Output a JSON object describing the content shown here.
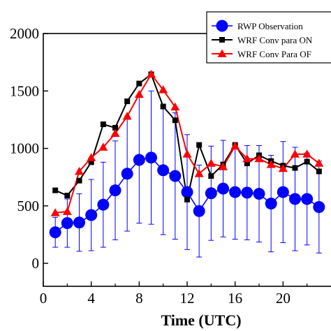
{
  "chart_data": {
    "type": "line",
    "xlabel": "Time (UTC)",
    "ylabel": "",
    "xlim": [
      0,
      24
    ],
    "ylim": [
      -200,
      2000
    ],
    "x_ticks": [
      0,
      4,
      8,
      12,
      16,
      20
    ],
    "y_ticks": [
      0,
      500,
      1000,
      1500,
      2000
    ],
    "x_tick_labels": [
      "0",
      "4",
      "8",
      "12",
      "16",
      "20"
    ],
    "y_tick_labels": [
      "0",
      "500",
      "1000",
      "1500",
      "2000"
    ],
    "legend_position": "top-right",
    "x": [
      1,
      2,
      3,
      4,
      5,
      6,
      7,
      8,
      9,
      10,
      11,
      12,
      13,
      14,
      15,
      16,
      17,
      18,
      19,
      20,
      21,
      22,
      23
    ],
    "series": [
      {
        "name": "RWP Observation",
        "color": "#0000ff",
        "marker": "circle",
        "values": [
          270,
          350,
          355,
          420,
          510,
          635,
          780,
          900,
          920,
          810,
          760,
          620,
          455,
          610,
          650,
          620,
          615,
          605,
          520,
          620,
          560,
          560,
          490
        ],
        "error": [
          130,
          210,
          250,
          310,
          370,
          430,
          500,
          550,
          580,
          560,
          550,
          500,
          400,
          410,
          420,
          410,
          410,
          420,
          420,
          440,
          450,
          400,
          400
        ]
      },
      {
        "name": "WRF Conv para ON",
        "color": "#000000",
        "marker": "square",
        "values": [
          635,
          590,
          720,
          880,
          1210,
          1180,
          1410,
          1565,
          1645,
          1365,
          1245,
          555,
          1030,
          760,
          860,
          1030,
          870,
          940,
          890,
          850,
          830,
          885,
          800
        ]
      },
      {
        "name": "WRF Conv Para OF",
        "color": "#ff0000",
        "marker": "triangle",
        "values": [
          440,
          450,
          800,
          920,
          1010,
          1130,
          1280,
          1470,
          1645,
          1510,
          1360,
          950,
          780,
          870,
          840,
          1020,
          910,
          910,
          860,
          825,
          950,
          950,
          870
        ]
      }
    ]
  }
}
